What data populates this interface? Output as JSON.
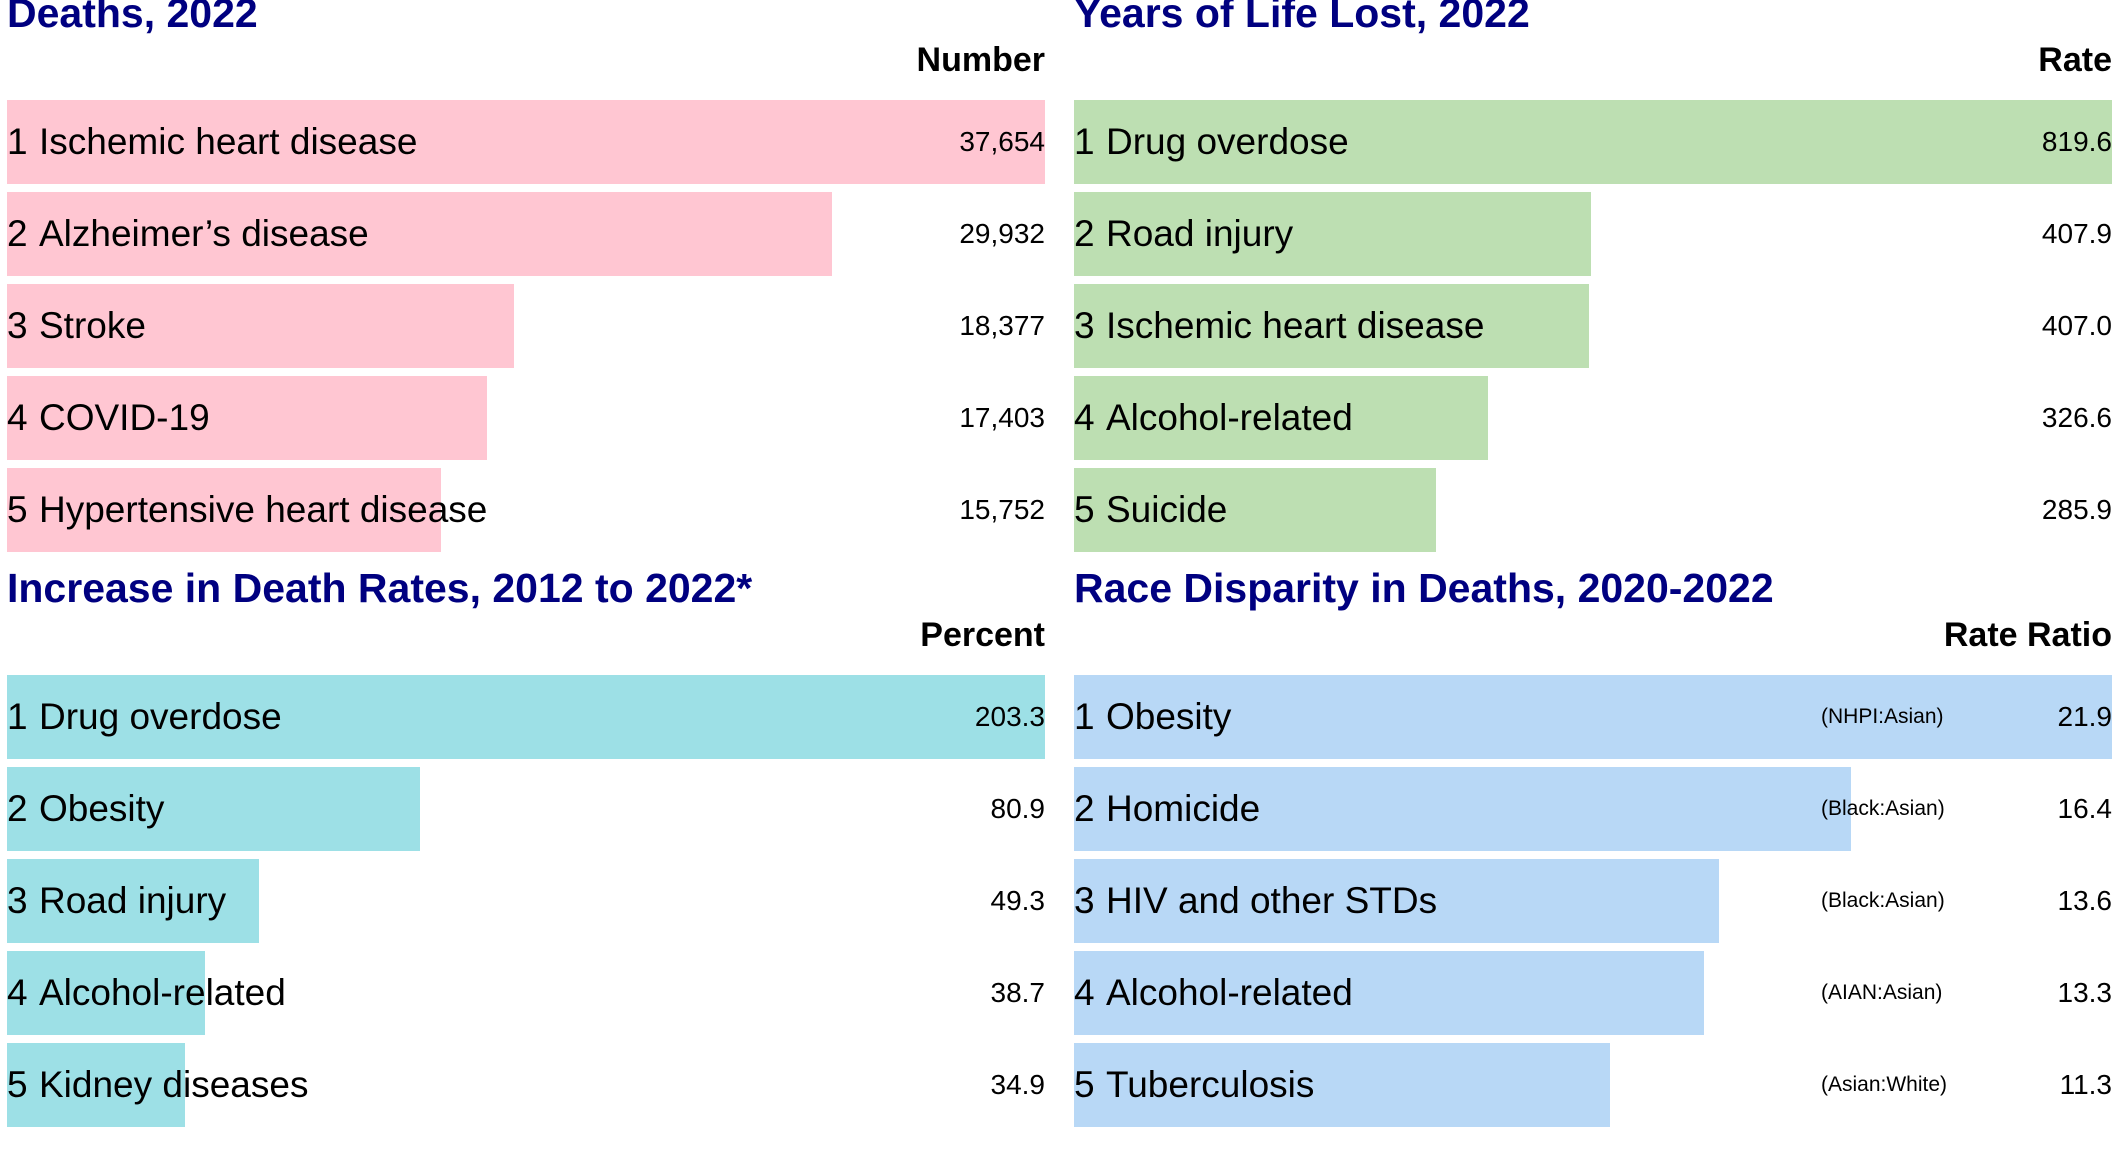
{
  "panels": [
    {
      "title": "Deaths, 2022",
      "measure": "Number",
      "color": "#FFC6D2",
      "rows": [
        {
          "rank": "1",
          "label": "Ischemic heart disease",
          "value": 37654,
          "value_text": "37,654"
        },
        {
          "rank": "2",
          "label": "Alzheimer’s disease",
          "value": 29932,
          "value_text": "29,932"
        },
        {
          "rank": "3",
          "label": "Stroke",
          "value": 18377,
          "value_text": "18,377"
        },
        {
          "rank": "4",
          "label": "COVID-19",
          "value": 17403,
          "value_text": "17,403"
        },
        {
          "rank": "5",
          "label": "Hypertensive heart disease",
          "value": 15752,
          "value_text": "15,752"
        }
      ]
    },
    {
      "title": "Years of Life Lost, 2022",
      "measure": "Rate",
      "color": "#BDDFB2",
      "rows": [
        {
          "rank": "1",
          "label": "Drug overdose",
          "value": 819.6,
          "value_text": "819.6"
        },
        {
          "rank": "2",
          "label": "Road injury",
          "value": 407.9,
          "value_text": "407.9"
        },
        {
          "rank": "3",
          "label": "Ischemic heart disease",
          "value": 407.0,
          "value_text": "407.0"
        },
        {
          "rank": "4",
          "label": "Alcohol-related",
          "value": 326.6,
          "value_text": "326.6"
        },
        {
          "rank": "5",
          "label": "Suicide",
          "value": 285.9,
          "value_text": "285.9"
        }
      ]
    },
    {
      "title": "Increase in Death Rates, 2012 to 2022*",
      "measure": "Percent",
      "color": "#9DE0E6",
      "rows": [
        {
          "rank": "1",
          "label": "Drug overdose",
          "value": 203.3,
          "value_text": "203.3"
        },
        {
          "rank": "2",
          "label": "Obesity",
          "value": 80.9,
          "value_text": "80.9"
        },
        {
          "rank": "3",
          "label": "Road injury",
          "value": 49.3,
          "value_text": "49.3"
        },
        {
          "rank": "4",
          "label": "Alcohol-related",
          "value": 38.7,
          "value_text": "38.7"
        },
        {
          "rank": "5",
          "label": "Kidney diseases",
          "value": 34.9,
          "value_text": "34.9"
        }
      ]
    },
    {
      "title": "Race Disparity in Deaths, 2020-2022",
      "measure": "Rate Ratio",
      "color": "#B8D8F6",
      "rows": [
        {
          "rank": "1",
          "label": "Obesity",
          "group": "(NHPI:Asian)",
          "value": 21.9,
          "value_text": "21.9"
        },
        {
          "rank": "2",
          "label": "Homicide",
          "group": "(Black:Asian)",
          "value": 16.4,
          "value_text": "16.4"
        },
        {
          "rank": "3",
          "label": "HIV and other STDs",
          "group": "(Black:Asian)",
          "value": 13.6,
          "value_text": "13.6"
        },
        {
          "rank": "4",
          "label": "Alcohol-related",
          "group": "(AIAN:Asian)",
          "value": 13.3,
          "value_text": "13.3"
        },
        {
          "rank": "5",
          "label": "Tuberculosis",
          "group": "(Asian:White)",
          "value": 11.3,
          "value_text": "11.3"
        }
      ]
    }
  ],
  "chart_data": [
    {
      "type": "bar",
      "title": "Deaths, 2022",
      "ylabel": "Number",
      "categories": [
        "Ischemic heart disease",
        "Alzheimer’s disease",
        "Stroke",
        "COVID-19",
        "Hypertensive heart disease"
      ],
      "values": [
        37654,
        29932,
        18377,
        17403,
        15752
      ]
    },
    {
      "type": "bar",
      "title": "Years of Life Lost, 2022",
      "ylabel": "Rate",
      "categories": [
        "Drug overdose",
        "Road injury",
        "Ischemic heart disease",
        "Alcohol-related",
        "Suicide"
      ],
      "values": [
        819.6,
        407.9,
        407.0,
        326.6,
        285.9
      ]
    },
    {
      "type": "bar",
      "title": "Increase in Death Rates, 2012 to 2022*",
      "ylabel": "Percent",
      "categories": [
        "Drug overdose",
        "Obesity",
        "Road injury",
        "Alcohol-related",
        "Kidney diseases"
      ],
      "values": [
        203.3,
        80.9,
        49.3,
        38.7,
        34.9
      ]
    },
    {
      "type": "bar",
      "title": "Race Disparity in Deaths, 2020-2022",
      "ylabel": "Rate Ratio",
      "categories": [
        "Obesity",
        "Homicide",
        "HIV and other STDs",
        "Alcohol-related",
        "Tuberculosis"
      ],
      "groups": [
        "(NHPI:Asian)",
        "(Black:Asian)",
        "(Black:Asian)",
        "(AIAN:Asian)",
        "(Asian:White)"
      ],
      "values": [
        21.9,
        16.4,
        13.6,
        13.3,
        11.3
      ]
    }
  ]
}
